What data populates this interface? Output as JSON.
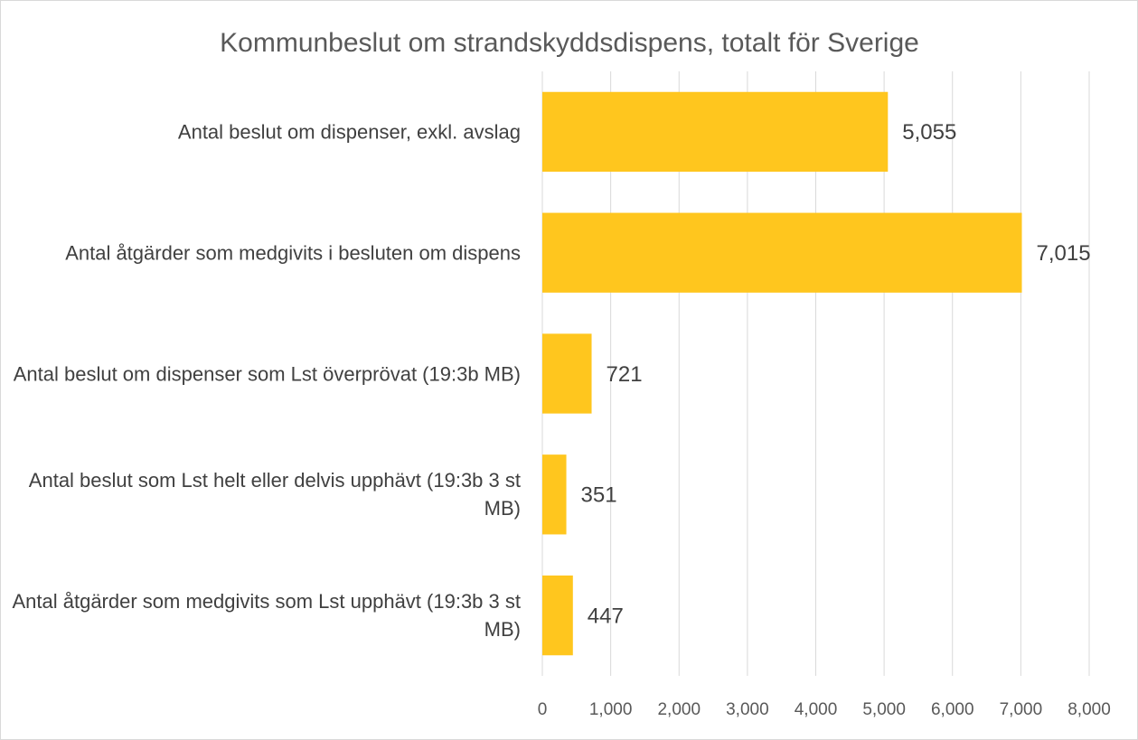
{
  "chart_data": {
    "type": "bar",
    "orientation": "horizontal",
    "title": "Kommunbeslut om strandskyddsdispens, totalt för Sverige",
    "categories": [
      "Antal beslut om dispenser, exkl. avslag",
      "Antal åtgärder som medgivits i besluten om dispens",
      "Antal beslut om dispenser som Lst överprövat (19:3b MB)",
      "Antal beslut som Lst helt eller delvis upphävt (19:3b 3 st MB)",
      "Antal åtgärder som medgivits som Lst upphävt (19:3b 3 st MB)"
    ],
    "values": [
      5055,
      7015,
      721,
      351,
      447
    ],
    "value_labels": [
      "5,055",
      "7,015",
      "721",
      "351",
      "447"
    ],
    "color": "#ffc61e",
    "xlim": [
      0,
      8000
    ],
    "xticks": [
      0,
      {
        "value": 1000,
        "label": "1,000"
      },
      {
        "value": 2000,
        "label": "2,000"
      },
      {
        "value": 3000,
        "label": "3,000"
      },
      {
        "value": 4000,
        "label": "4,000"
      },
      {
        "value": 5000,
        "label": "5,000"
      },
      {
        "value": 6000,
        "label": "6,000"
      },
      {
        "value": 7000,
        "label": "7,000"
      },
      {
        "value": 8000,
        "label": "8,000"
      }
    ],
    "grid": true
  }
}
